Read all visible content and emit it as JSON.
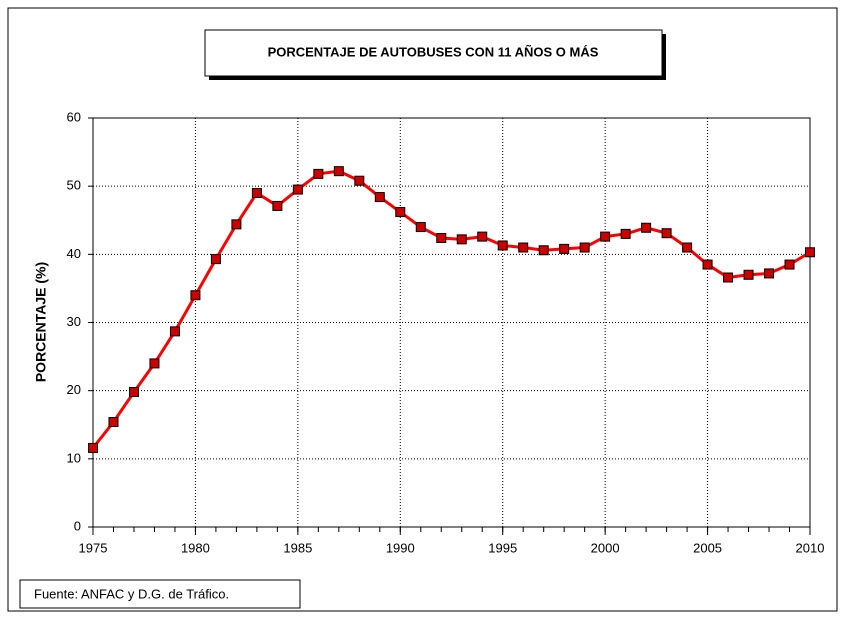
{
  "chart_data": {
    "type": "line",
    "title": "PORCENTAJE DE AUTOBUSES CON 11 AÑOS O MÁS",
    "y_label": "PORCENTAJE (%)",
    "source": "Fuente: ANFAC y D.G. de Tráfico.",
    "x": [
      1975,
      1976,
      1977,
      1978,
      1979,
      1980,
      1981,
      1982,
      1983,
      1984,
      1985,
      1986,
      1987,
      1988,
      1989,
      1990,
      1991,
      1992,
      1993,
      1994,
      1995,
      1996,
      1997,
      1998,
      1999,
      2000,
      2001,
      2002,
      2003,
      2004,
      2005,
      2006,
      2007,
      2008,
      2009,
      2010
    ],
    "series": [
      {
        "name": "PORCENTAJE",
        "color": "#ff0000",
        "marker_color": "#cc0000",
        "values": [
          11.6,
          15.4,
          19.8,
          24.0,
          28.7,
          34.0,
          39.3,
          44.4,
          49.0,
          47.1,
          49.5,
          51.8,
          52.2,
          50.8,
          48.4,
          46.2,
          44.0,
          42.4,
          42.2,
          42.6,
          41.3,
          41.0,
          40.6,
          40.8,
          41.0,
          42.6,
          43.0,
          43.9,
          43.1,
          41.0,
          38.5,
          36.6,
          37.0,
          37.2,
          38.5,
          40.3
        ]
      }
    ],
    "xlim": [
      1975,
      2010
    ],
    "xticks": [
      1975,
      1980,
      1985,
      1990,
      1995,
      2000,
      2005,
      2010
    ],
    "ylim": [
      0,
      60
    ],
    "yticks": [
      0,
      10,
      20,
      30,
      40,
      50,
      60
    ],
    "grid": true
  }
}
